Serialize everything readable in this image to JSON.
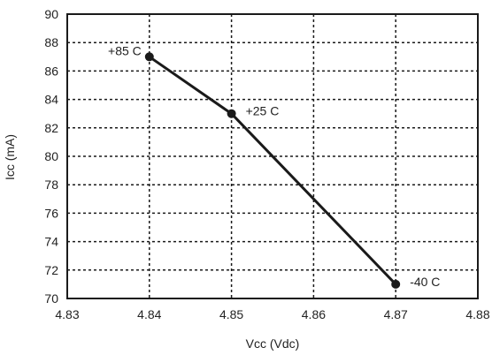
{
  "chart_data": {
    "type": "line",
    "title": "",
    "xlabel": "Vcc (Vdc)",
    "ylabel": "Icc (mA)",
    "xlim": [
      4.83,
      4.88
    ],
    "ylim": [
      70,
      90
    ],
    "x_ticks": [
      "4.83",
      "4.84",
      "4.85",
      "4.86",
      "4.87",
      "4.88"
    ],
    "y_ticks": [
      "70",
      "72",
      "74",
      "76",
      "78",
      "80",
      "82",
      "84",
      "86",
      "88",
      "90"
    ],
    "grid": true,
    "legend": "none",
    "series": [
      {
        "points": [
          {
            "x": 4.84,
            "y": 87,
            "label": "+85 C"
          },
          {
            "x": 4.85,
            "y": 83,
            "label": "+25 C"
          },
          {
            "x": 4.87,
            "y": 71,
            "label": "-40 C"
          }
        ]
      }
    ],
    "line_color": "#1a1a1a",
    "grid_color": "#1a1a1a"
  }
}
